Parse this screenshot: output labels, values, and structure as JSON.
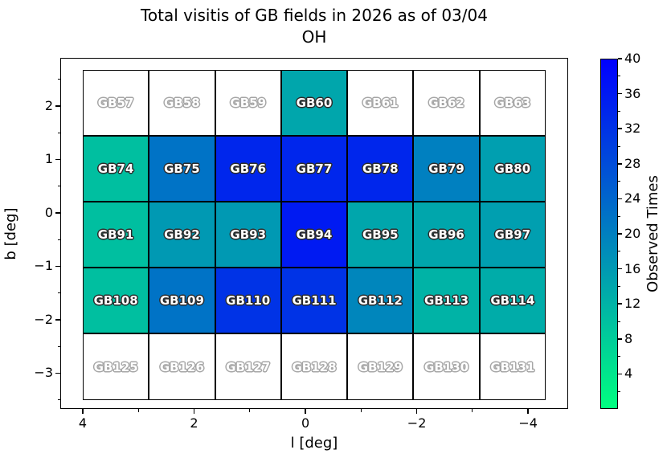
{
  "title": {
    "line1": "Total visitis of GB fields in 2026 as of 03/04",
    "line2": "OH"
  },
  "axes": {
    "xlabel": "l [deg]",
    "ylabel": "b [deg]",
    "xlim": [
      4.404,
      -4.72
    ],
    "ylim": [
      2.9,
      -3.67
    ],
    "x_ticks": [
      {
        "value": 4,
        "label": "4"
      },
      {
        "value": 2,
        "label": "2"
      },
      {
        "value": 0,
        "label": "0"
      },
      {
        "value": -2,
        "label": "−2"
      },
      {
        "value": -4,
        "label": "−4"
      }
    ],
    "x_minor_ticks": [
      3,
      1,
      -1,
      -3
    ],
    "y_ticks": [
      {
        "value": 2,
        "label": "2"
      },
      {
        "value": 1,
        "label": "1"
      },
      {
        "value": 0,
        "label": "0"
      },
      {
        "value": -1,
        "label": "−1"
      },
      {
        "value": -2,
        "label": "−2"
      },
      {
        "value": -3,
        "label": "−3"
      }
    ],
    "y_minor_ticks": [
      2.5,
      1.5,
      0.5,
      -0.5,
      -1.5,
      -2.5,
      -3.5
    ]
  },
  "colorbar": {
    "label": "Observed Times",
    "vmin": 0,
    "vmax": 40,
    "colormap": "winter_r",
    "color_min": "#00ff80",
    "color_max": "#0000ff",
    "ticks": [
      {
        "value": 4,
        "label": "4"
      },
      {
        "value": 8,
        "label": "8"
      },
      {
        "value": 12,
        "label": "12"
      },
      {
        "value": 16,
        "label": "16"
      },
      {
        "value": 20,
        "label": "20"
      },
      {
        "value": 24,
        "label": "24"
      },
      {
        "value": 28,
        "label": "28"
      },
      {
        "value": 32,
        "label": "32"
      },
      {
        "value": 36,
        "label": "36"
      },
      {
        "value": 40,
        "label": "40"
      }
    ],
    "minor_ticks": [
      2,
      6,
      10,
      14,
      18,
      22,
      26,
      30,
      34,
      38
    ]
  },
  "chart_data": {
    "type": "heatmap",
    "title": "Total visitis of GB fields in 2026 as of 03/04 OH",
    "value_label": "Observed Times",
    "grid": {
      "l_start": 4.0,
      "b_start": 2.68,
      "cell_l": 1.188,
      "cell_b": 1.236,
      "cols": 7,
      "rows": 5
    },
    "note": "value null = field not observed (white cell); values estimated from winter_r colormap, vmin 0 vmax 40",
    "rows": [
      [
        {
          "name": "GB57",
          "value": null
        },
        {
          "name": "GB58",
          "value": null
        },
        {
          "name": "GB59",
          "value": null
        },
        {
          "name": "GB60",
          "value": 14
        },
        {
          "name": "GB61",
          "value": null
        },
        {
          "name": "GB62",
          "value": null
        },
        {
          "name": "GB63",
          "value": null
        }
      ],
      [
        {
          "name": "GB74",
          "value": 10
        },
        {
          "name": "GB75",
          "value": 22
        },
        {
          "name": "GB76",
          "value": 34
        },
        {
          "name": "GB77",
          "value": 34
        },
        {
          "name": "GB78",
          "value": 34
        },
        {
          "name": "GB79",
          "value": 20
        },
        {
          "name": "GB80",
          "value": 15
        }
      ],
      [
        {
          "name": "GB91",
          "value": 10
        },
        {
          "name": "GB92",
          "value": 16
        },
        {
          "name": "GB93",
          "value": 16
        },
        {
          "name": "GB94",
          "value": 36
        },
        {
          "name": "GB95",
          "value": 14
        },
        {
          "name": "GB96",
          "value": 14
        },
        {
          "name": "GB97",
          "value": 15
        }
      ],
      [
        {
          "name": "GB108",
          "value": 10
        },
        {
          "name": "GB109",
          "value": 22
        },
        {
          "name": "GB110",
          "value": 32
        },
        {
          "name": "GB111",
          "value": 32
        },
        {
          "name": "GB112",
          "value": 19
        },
        {
          "name": "GB113",
          "value": 12
        },
        {
          "name": "GB114",
          "value": 13
        }
      ],
      [
        {
          "name": "GB125",
          "value": null
        },
        {
          "name": "GB126",
          "value": null
        },
        {
          "name": "GB127",
          "value": null
        },
        {
          "name": "GB128",
          "value": null
        },
        {
          "name": "GB129",
          "value": null
        },
        {
          "name": "GB130",
          "value": null
        },
        {
          "name": "GB131",
          "value": null
        }
      ]
    ]
  }
}
